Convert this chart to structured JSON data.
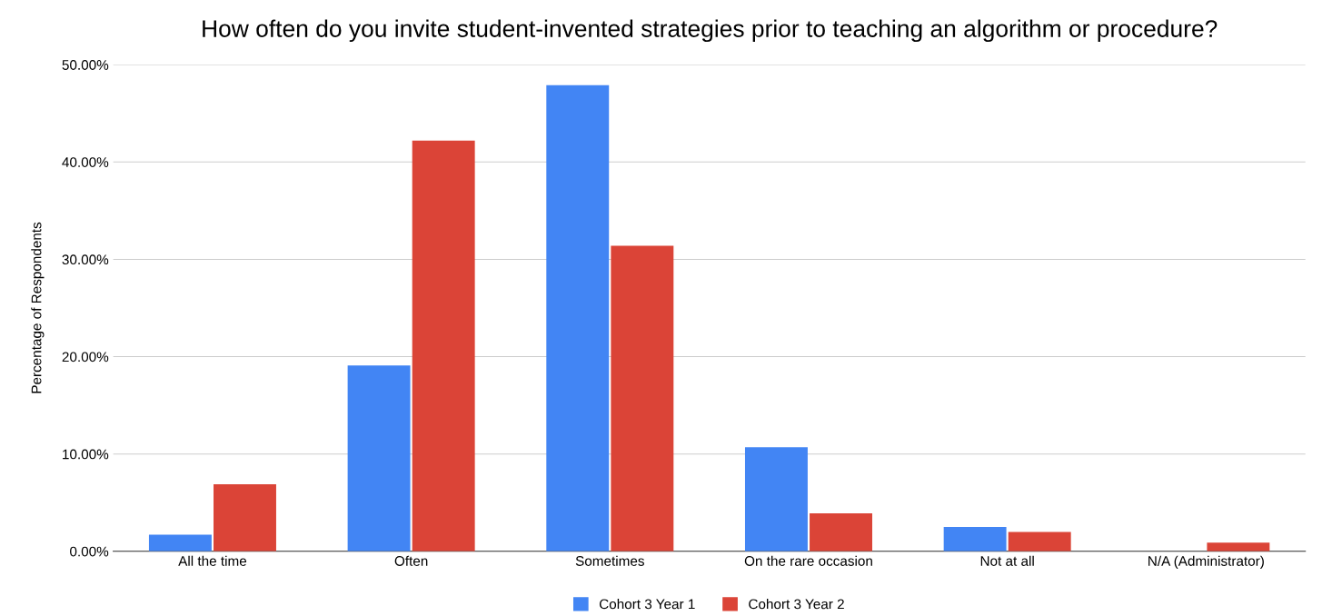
{
  "chart_data": {
    "type": "bar",
    "title": "How often do you invite student-invented strategies prior to teaching an algorithm or procedure?",
    "ylabel": "Percentage of Respondents",
    "categories": [
      "All the time",
      "Often",
      "Sometimes",
      "On the rare occasion",
      "Not at all",
      "N/A (Administrator)"
    ],
    "series": [
      {
        "name": "Cohort 3 Year 1",
        "color": "#4285f4",
        "values": [
          1.7,
          19.1,
          47.9,
          10.7,
          2.5,
          0
        ]
      },
      {
        "name": "Cohort 3 Year 2",
        "color": "#db4437",
        "values": [
          6.9,
          42.2,
          31.4,
          3.9,
          2.0,
          0.9
        ]
      }
    ],
    "ylim": [
      0,
      50
    ],
    "yticks": [
      {
        "value": 0,
        "label": "0.00%"
      },
      {
        "value": 10,
        "label": "10.00%"
      },
      {
        "value": 20,
        "label": "20.00%"
      },
      {
        "value": 30,
        "label": "30.00%"
      },
      {
        "value": 40,
        "label": "40.00%"
      },
      {
        "value": 50,
        "label": "50.00%"
      }
    ],
    "grid": "y",
    "legend": "bottom"
  }
}
